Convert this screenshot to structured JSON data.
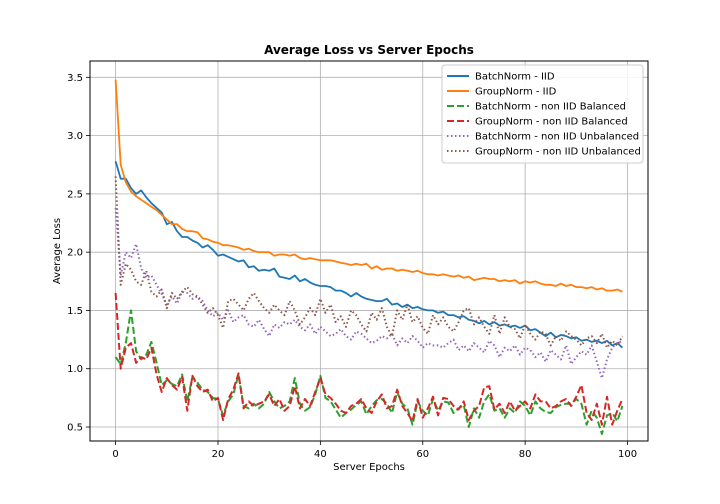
{
  "chart_data": {
    "type": "line",
    "title": "Average Loss vs Server Epochs",
    "xlabel": "Server Epochs",
    "ylabel": "Average Loss",
    "xlim": [
      -5,
      104
    ],
    "ylim": [
      0.38,
      3.64
    ],
    "xticks": [
      0,
      20,
      40,
      60,
      80,
      100
    ],
    "yticks": [
      0.5,
      1.0,
      1.5,
      2.0,
      2.5,
      3.0,
      3.5
    ],
    "xtick_labels": [
      "0",
      "20",
      "40",
      "60",
      "80",
      "100"
    ],
    "ytick_labels": [
      "0.5",
      "1.0",
      "1.5",
      "2.0",
      "2.5",
      "3.0",
      "3.5"
    ],
    "grid": true,
    "legend_position": "top-right",
    "series": [
      {
        "name": "BatchNorm - IID",
        "color": "#1f77b4",
        "style": "solid",
        "x": [
          0,
          1,
          2,
          3,
          4,
          5,
          6,
          7,
          8,
          9,
          10,
          11,
          12,
          13,
          14,
          15,
          16,
          17,
          18,
          19,
          20,
          21,
          22,
          23,
          24,
          25,
          26,
          27,
          28,
          29,
          30,
          31,
          32,
          33,
          34,
          35,
          36,
          37,
          38,
          39,
          40,
          41,
          42,
          43,
          44,
          45,
          46,
          47,
          48,
          49,
          50,
          51,
          52,
          53,
          54,
          55,
          56,
          57,
          58,
          59,
          60,
          61,
          62,
          63,
          64,
          65,
          66,
          67,
          68,
          69,
          70,
          71,
          72,
          73,
          74,
          75,
          76,
          77,
          78,
          79,
          80,
          81,
          82,
          83,
          84,
          85,
          86,
          87,
          88,
          89,
          90,
          91,
          92,
          93,
          94,
          95,
          96,
          97,
          98,
          99
        ],
        "y": [
          2.78,
          2.63,
          2.63,
          2.55,
          2.5,
          2.53,
          2.47,
          2.42,
          2.38,
          2.34,
          2.24,
          2.26,
          2.18,
          2.13,
          2.13,
          2.1,
          2.08,
          2.04,
          2.06,
          2.02,
          1.97,
          1.98,
          1.96,
          1.94,
          1.92,
          1.93,
          1.87,
          1.88,
          1.84,
          1.85,
          1.84,
          1.86,
          1.79,
          1.78,
          1.77,
          1.8,
          1.75,
          1.77,
          1.74,
          1.72,
          1.71,
          1.71,
          1.7,
          1.67,
          1.67,
          1.65,
          1.62,
          1.65,
          1.62,
          1.6,
          1.59,
          1.58,
          1.58,
          1.6,
          1.55,
          1.56,
          1.53,
          1.55,
          1.52,
          1.53,
          1.51,
          1.5,
          1.5,
          1.48,
          1.49,
          1.46,
          1.46,
          1.44,
          1.45,
          1.42,
          1.41,
          1.39,
          1.41,
          1.38,
          1.4,
          1.37,
          1.38,
          1.36,
          1.37,
          1.35,
          1.37,
          1.33,
          1.34,
          1.31,
          1.28,
          1.31,
          1.27,
          1.29,
          1.28,
          1.26,
          1.27,
          1.24,
          1.25,
          1.23,
          1.24,
          1.22,
          1.24,
          1.2,
          1.22,
          1.18
        ]
      },
      {
        "name": "GroupNorm - IID",
        "color": "#ff7f0e",
        "style": "solid",
        "x": [
          0,
          1,
          2,
          3,
          4,
          5,
          6,
          7,
          8,
          9,
          10,
          11,
          12,
          13,
          14,
          15,
          16,
          17,
          18,
          19,
          20,
          21,
          22,
          23,
          24,
          25,
          26,
          27,
          28,
          29,
          30,
          31,
          32,
          33,
          34,
          35,
          36,
          37,
          38,
          39,
          40,
          41,
          42,
          43,
          44,
          45,
          46,
          47,
          48,
          49,
          50,
          51,
          52,
          53,
          54,
          55,
          56,
          57,
          58,
          59,
          60,
          61,
          62,
          63,
          64,
          65,
          66,
          67,
          68,
          69,
          70,
          71,
          72,
          73,
          74,
          75,
          76,
          77,
          78,
          79,
          80,
          81,
          82,
          83,
          84,
          85,
          86,
          87,
          88,
          89,
          90,
          91,
          92,
          93,
          94,
          95,
          96,
          97,
          98,
          99
        ],
        "y": [
          3.48,
          2.75,
          2.6,
          2.52,
          2.48,
          2.45,
          2.42,
          2.39,
          2.36,
          2.32,
          2.28,
          2.24,
          2.24,
          2.2,
          2.18,
          2.18,
          2.17,
          2.12,
          2.11,
          2.09,
          2.08,
          2.06,
          2.06,
          2.05,
          2.04,
          2.02,
          2.03,
          2.01,
          2.0,
          2.0,
          2.0,
          1.97,
          1.98,
          1.98,
          1.97,
          1.98,
          1.95,
          1.94,
          1.95,
          1.94,
          1.93,
          1.93,
          1.93,
          1.92,
          1.91,
          1.9,
          1.89,
          1.9,
          1.89,
          1.9,
          1.86,
          1.88,
          1.85,
          1.86,
          1.86,
          1.84,
          1.85,
          1.84,
          1.83,
          1.84,
          1.82,
          1.81,
          1.81,
          1.8,
          1.81,
          1.8,
          1.79,
          1.8,
          1.78,
          1.79,
          1.76,
          1.77,
          1.78,
          1.77,
          1.77,
          1.75,
          1.76,
          1.75,
          1.76,
          1.73,
          1.75,
          1.74,
          1.75,
          1.73,
          1.72,
          1.72,
          1.71,
          1.73,
          1.71,
          1.72,
          1.7,
          1.7,
          1.69,
          1.7,
          1.68,
          1.69,
          1.67,
          1.67,
          1.68,
          1.66
        ]
      },
      {
        "name": "BatchNorm - non IID Balanced",
        "color": "#2ca02c",
        "style": "dashed",
        "x": [
          0,
          1,
          2,
          3,
          4,
          5,
          6,
          7,
          8,
          9,
          10,
          11,
          12,
          13,
          14,
          15,
          16,
          17,
          18,
          19,
          20,
          21,
          22,
          23,
          24,
          25,
          26,
          27,
          28,
          29,
          30,
          31,
          32,
          33,
          34,
          35,
          36,
          37,
          38,
          39,
          40,
          41,
          42,
          43,
          44,
          45,
          46,
          47,
          48,
          49,
          50,
          51,
          52,
          53,
          54,
          55,
          56,
          57,
          58,
          59,
          60,
          61,
          62,
          63,
          64,
          65,
          66,
          67,
          68,
          69,
          70,
          71,
          72,
          73,
          74,
          75,
          76,
          77,
          78,
          79,
          80,
          81,
          82,
          83,
          84,
          85,
          86,
          87,
          88,
          89,
          90,
          91,
          92,
          93,
          94,
          95,
          96,
          97,
          98,
          99
        ],
        "y": [
          1.1,
          1.04,
          1.22,
          1.5,
          1.15,
          1.08,
          1.12,
          1.23,
          1.05,
          0.86,
          0.9,
          0.87,
          0.85,
          0.95,
          0.72,
          0.93,
          0.88,
          0.82,
          0.8,
          0.75,
          0.74,
          0.6,
          0.72,
          0.78,
          0.95,
          0.68,
          0.66,
          0.7,
          0.66,
          0.7,
          0.8,
          0.72,
          0.66,
          0.68,
          0.72,
          0.92,
          0.7,
          0.64,
          0.67,
          0.78,
          0.94,
          0.75,
          0.72,
          0.65,
          0.58,
          0.62,
          0.65,
          0.69,
          0.72,
          0.61,
          0.68,
          0.73,
          0.74,
          0.7,
          0.62,
          0.8,
          0.7,
          0.66,
          0.52,
          0.72,
          0.64,
          0.6,
          0.74,
          0.64,
          0.72,
          0.71,
          0.62,
          0.66,
          0.69,
          0.5,
          0.66,
          0.58,
          0.72,
          0.78,
          0.64,
          0.66,
          0.58,
          0.66,
          0.62,
          0.72,
          0.68,
          0.6,
          0.72,
          0.66,
          0.63,
          0.62,
          0.67,
          0.69,
          0.7,
          0.7,
          0.74,
          0.7,
          0.52,
          0.64,
          0.58,
          0.44,
          0.6,
          0.62,
          0.55,
          0.68
        ]
      },
      {
        "name": "GroupNorm - non IID Balanced",
        "color": "#d62728",
        "style": "dashed",
        "x": [
          0,
          1,
          2,
          3,
          4,
          5,
          6,
          7,
          8,
          9,
          10,
          11,
          12,
          13,
          14,
          15,
          16,
          17,
          18,
          19,
          20,
          21,
          22,
          23,
          24,
          25,
          26,
          27,
          28,
          29,
          30,
          31,
          32,
          33,
          34,
          35,
          36,
          37,
          38,
          39,
          40,
          41,
          42,
          43,
          44,
          45,
          46,
          47,
          48,
          49,
          50,
          51,
          52,
          53,
          54,
          55,
          56,
          57,
          58,
          59,
          60,
          61,
          62,
          63,
          64,
          65,
          66,
          67,
          68,
          69,
          70,
          71,
          72,
          73,
          74,
          75,
          76,
          77,
          78,
          79,
          80,
          81,
          82,
          83,
          84,
          85,
          86,
          87,
          88,
          89,
          90,
          91,
          92,
          93,
          94,
          95,
          96,
          97,
          98,
          99
        ],
        "y": [
          1.65,
          1.0,
          1.18,
          1.22,
          1.05,
          1.1,
          1.08,
          1.18,
          0.95,
          0.8,
          0.92,
          0.86,
          0.82,
          0.93,
          0.64,
          0.94,
          0.85,
          0.8,
          0.82,
          0.72,
          0.75,
          0.56,
          0.74,
          0.82,
          0.96,
          0.66,
          0.72,
          0.68,
          0.7,
          0.72,
          0.78,
          0.68,
          0.74,
          0.64,
          0.68,
          0.85,
          0.66,
          0.74,
          0.68,
          0.8,
          0.92,
          0.78,
          0.75,
          0.7,
          0.64,
          0.62,
          0.68,
          0.7,
          0.74,
          0.66,
          0.62,
          0.72,
          0.78,
          0.66,
          0.68,
          0.82,
          0.68,
          0.62,
          0.55,
          0.74,
          0.58,
          0.66,
          0.76,
          0.6,
          0.75,
          0.74,
          0.68,
          0.65,
          0.72,
          0.56,
          0.64,
          0.68,
          0.84,
          0.85,
          0.65,
          0.7,
          0.62,
          0.72,
          0.64,
          0.68,
          0.72,
          0.66,
          0.78,
          0.72,
          0.72,
          0.66,
          0.68,
          0.72,
          0.74,
          0.68,
          0.76,
          0.86,
          0.62,
          0.56,
          0.7,
          0.52,
          0.76,
          0.52,
          0.64,
          0.74
        ]
      },
      {
        "name": "BatchNorm - non IID Unbalanced",
        "color": "#9467bd",
        "style": "dotted",
        "x": [
          0,
          1,
          2,
          3,
          4,
          5,
          6,
          7,
          8,
          9,
          10,
          11,
          12,
          13,
          14,
          15,
          16,
          17,
          18,
          19,
          20,
          21,
          22,
          23,
          24,
          25,
          26,
          27,
          28,
          29,
          30,
          31,
          32,
          33,
          34,
          35,
          36,
          37,
          38,
          39,
          40,
          41,
          42,
          43,
          44,
          45,
          46,
          47,
          48,
          49,
          50,
          51,
          52,
          53,
          54,
          55,
          56,
          57,
          58,
          59,
          60,
          61,
          62,
          63,
          64,
          65,
          66,
          67,
          68,
          69,
          70,
          71,
          72,
          73,
          74,
          75,
          76,
          77,
          78,
          79,
          80,
          81,
          82,
          83,
          84,
          85,
          86,
          87,
          88,
          89,
          90,
          91,
          92,
          93,
          94,
          95,
          96,
          97,
          98,
          99
        ],
        "y": [
          2.38,
          1.8,
          2.0,
          1.95,
          2.07,
          1.86,
          1.78,
          1.8,
          1.72,
          1.64,
          1.55,
          1.62,
          1.56,
          1.66,
          1.65,
          1.6,
          1.62,
          1.58,
          1.5,
          1.45,
          1.48,
          1.42,
          1.5,
          1.4,
          1.44,
          1.46,
          1.38,
          1.36,
          1.42,
          1.34,
          1.28,
          1.38,
          1.35,
          1.4,
          1.38,
          1.42,
          1.36,
          1.33,
          1.38,
          1.3,
          1.36,
          1.32,
          1.28,
          1.3,
          1.34,
          1.28,
          1.25,
          1.32,
          1.3,
          1.26,
          1.22,
          1.24,
          1.28,
          1.26,
          1.3,
          1.2,
          1.26,
          1.22,
          1.28,
          1.24,
          1.18,
          1.22,
          1.2,
          1.2,
          1.18,
          1.22,
          1.25,
          1.16,
          1.2,
          1.15,
          1.22,
          1.18,
          1.14,
          1.24,
          1.2,
          1.1,
          1.18,
          1.15,
          1.2,
          1.12,
          1.18,
          1.16,
          1.1,
          1.14,
          1.06,
          1.16,
          1.12,
          1.08,
          1.2,
          1.04,
          1.1,
          1.15,
          1.12,
          1.2,
          1.06,
          0.92,
          1.08,
          1.18,
          1.22,
          1.24
        ]
      },
      {
        "name": "GroupNorm - non IID Unbalanced",
        "color": "#8c564b",
        "style": "dotted",
        "x": [
          0,
          1,
          2,
          3,
          4,
          5,
          6,
          7,
          8,
          9,
          10,
          11,
          12,
          13,
          14,
          15,
          16,
          17,
          18,
          19,
          20,
          21,
          22,
          23,
          24,
          25,
          26,
          27,
          28,
          29,
          30,
          31,
          32,
          33,
          34,
          35,
          36,
          37,
          38,
          39,
          40,
          41,
          42,
          43,
          44,
          45,
          46,
          47,
          48,
          49,
          50,
          51,
          52,
          53,
          54,
          55,
          56,
          57,
          58,
          59,
          60,
          61,
          62,
          63,
          64,
          65,
          66,
          67,
          68,
          69,
          70,
          71,
          72,
          73,
          74,
          75,
          76,
          77,
          78,
          79,
          80,
          81,
          82,
          83,
          84,
          85,
          86,
          87,
          88,
          89,
          90,
          91,
          92,
          93,
          94,
          95,
          96,
          97,
          98,
          99
        ],
        "y": [
          2.65,
          1.72,
          1.9,
          1.85,
          1.75,
          1.72,
          1.84,
          1.66,
          1.62,
          1.68,
          1.52,
          1.65,
          1.6,
          1.66,
          1.7,
          1.64,
          1.62,
          1.55,
          1.48,
          1.52,
          1.46,
          1.35,
          1.58,
          1.6,
          1.55,
          1.5,
          1.6,
          1.65,
          1.58,
          1.52,
          1.48,
          1.55,
          1.5,
          1.46,
          1.58,
          1.5,
          1.38,
          1.44,
          1.52,
          1.46,
          1.6,
          1.48,
          1.55,
          1.4,
          1.45,
          1.36,
          1.5,
          1.46,
          1.38,
          1.32,
          1.48,
          1.42,
          1.52,
          1.36,
          1.28,
          1.5,
          1.42,
          1.55,
          1.4,
          1.45,
          1.35,
          1.3,
          1.46,
          1.38,
          1.44,
          1.36,
          1.32,
          1.4,
          1.5,
          1.52,
          1.38,
          1.44,
          1.36,
          1.3,
          1.46,
          1.3,
          1.44,
          1.36,
          1.34,
          1.26,
          1.38,
          1.3,
          1.25,
          1.32,
          1.3,
          1.2,
          1.28,
          1.24,
          1.32,
          1.28,
          1.25,
          1.2,
          1.26,
          1.28,
          1.22,
          1.3,
          1.18,
          1.24,
          1.2,
          1.28
        ]
      }
    ]
  }
}
